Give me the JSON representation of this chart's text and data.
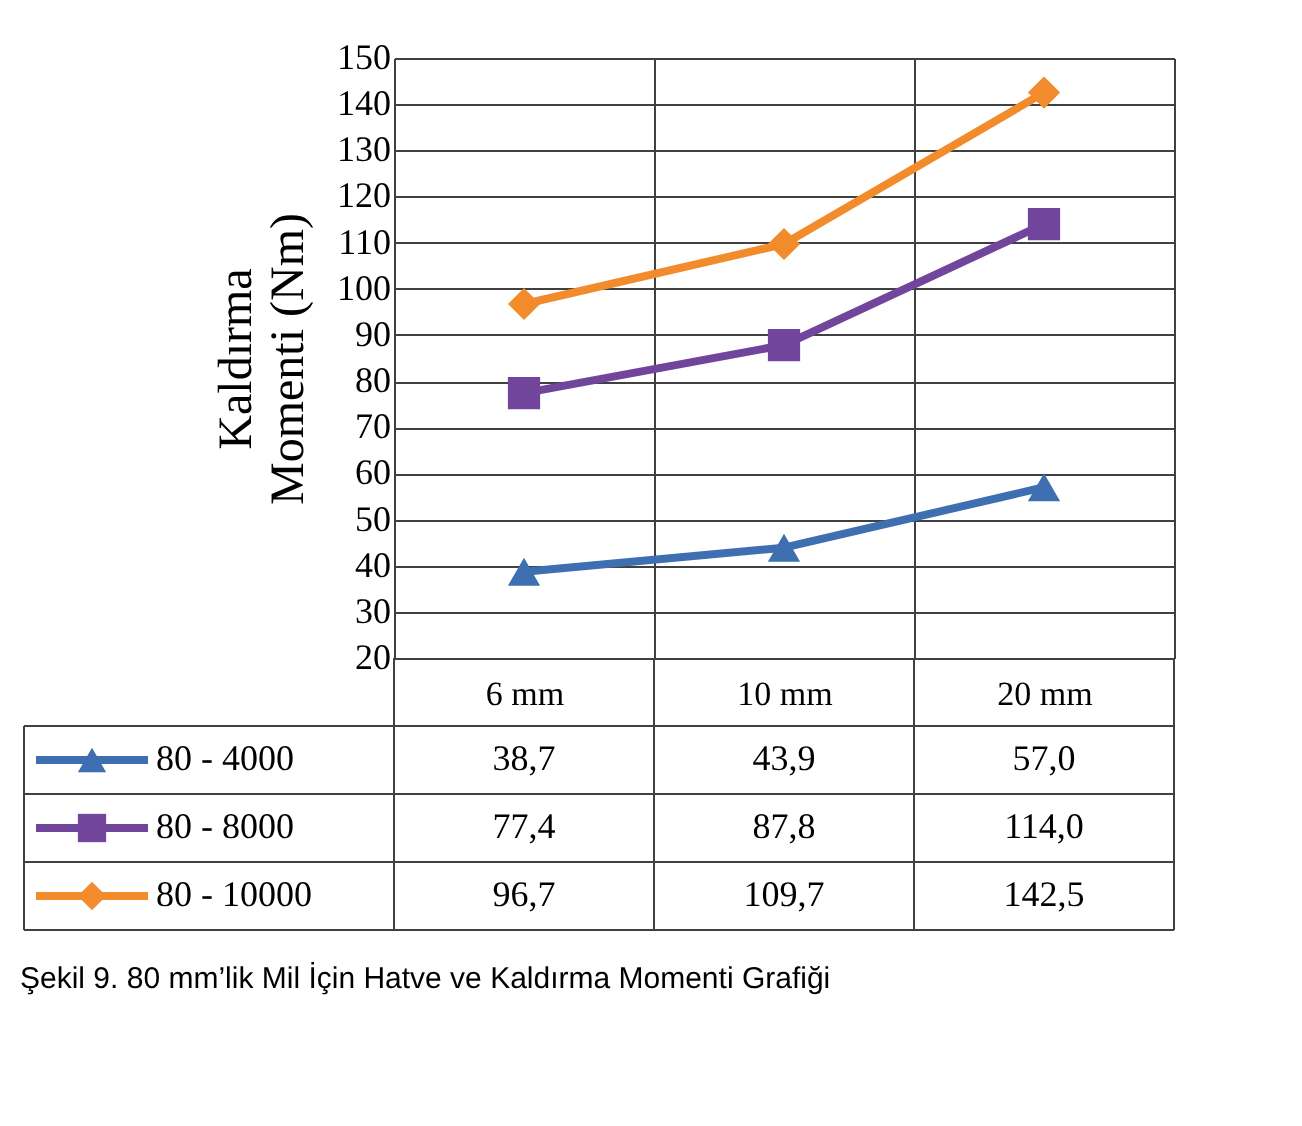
{
  "chart_data": {
    "type": "line",
    "ylabel": "Kaldırma Momenti (Nm)",
    "categories": [
      "6 mm",
      "10 mm",
      "20 mm"
    ],
    "ylim": [
      20,
      150
    ],
    "yticks": [
      20,
      30,
      40,
      50,
      60,
      70,
      80,
      90,
      100,
      110,
      120,
      130,
      140,
      150
    ],
    "grid": true,
    "legend": "bottom",
    "series": [
      {
        "name": "80 - 4000",
        "color": "#3e6fb0",
        "marker": "triangle",
        "values": [
          38.7,
          43.9,
          57.0
        ],
        "value_labels": [
          "38,7",
          "43,9",
          "57,0"
        ]
      },
      {
        "name": "80 - 8000",
        "color": "#71459b",
        "marker": "square",
        "values": [
          77.4,
          87.8,
          114.0
        ],
        "value_labels": [
          "77,4",
          "87,8",
          "114,0"
        ]
      },
      {
        "name": "80 - 10000",
        "color": "#f28b2c",
        "marker": "diamond",
        "values": [
          96.7,
          109.7,
          142.5
        ],
        "value_labels": [
          "96,7",
          "109,7",
          "142,5"
        ]
      }
    ],
    "annotations": [
      "Şekil 9. 80 mm’lik Mil İçin Hatve ve Kaldırma Momenti Grafiği"
    ]
  }
}
